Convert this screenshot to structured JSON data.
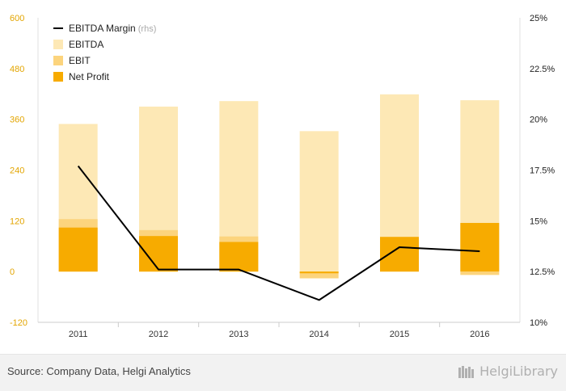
{
  "chart_data": {
    "type": "bar",
    "categories": [
      "2011",
      "2012",
      "2013",
      "2014",
      "2015",
      "2016"
    ],
    "series": [
      {
        "name": "EBITDA",
        "kind": "bar",
        "axis": "left",
        "values": [
          349,
          390,
          403,
          332,
          419,
          405
        ],
        "color": "#fde8b5"
      },
      {
        "name": "EBIT",
        "kind": "bar",
        "axis": "left",
        "values": [
          124,
          98,
          83,
          -16,
          80,
          -8
        ],
        "color": "#fcd47d"
      },
      {
        "name": "Net Profit",
        "kind": "bar",
        "axis": "left",
        "values": [
          104,
          84,
          70,
          -4,
          82,
          115
        ],
        "color": "#f7ab00"
      },
      {
        "name": "EBITDA Margin",
        "kind": "line",
        "axis": "right",
        "values": [
          17.7,
          12.6,
          12.6,
          11.1,
          13.7,
          13.5
        ],
        "color": "#000000"
      }
    ],
    "left_axis": {
      "ylim": [
        -120,
        600
      ],
      "ticks": [
        "-120",
        "0",
        "120",
        "240",
        "360",
        "480",
        "600"
      ],
      "color": "#e3a500"
    },
    "right_axis": {
      "ylim": [
        10,
        25
      ],
      "ticks": [
        "10%",
        "12.5%",
        "15%",
        "17.5%",
        "20%",
        "22.5%",
        "25%"
      ]
    },
    "legend": {
      "placement": "top-left",
      "items": [
        {
          "label": "EBITDA Margin",
          "sub": "(rhs)",
          "symbol": "line",
          "color": "#000000"
        },
        {
          "label": "EBITDA",
          "symbol": "box",
          "color": "#fde8b5"
        },
        {
          "label": "EBIT",
          "symbol": "box",
          "color": "#fcd47d"
        },
        {
          "label": "Net Profit",
          "symbol": "box",
          "color": "#f7ab00"
        }
      ]
    },
    "grid": false
  },
  "footer": {
    "source": "Source: Company Data, Helgi Analytics",
    "brand": "HelgiLibrary"
  }
}
